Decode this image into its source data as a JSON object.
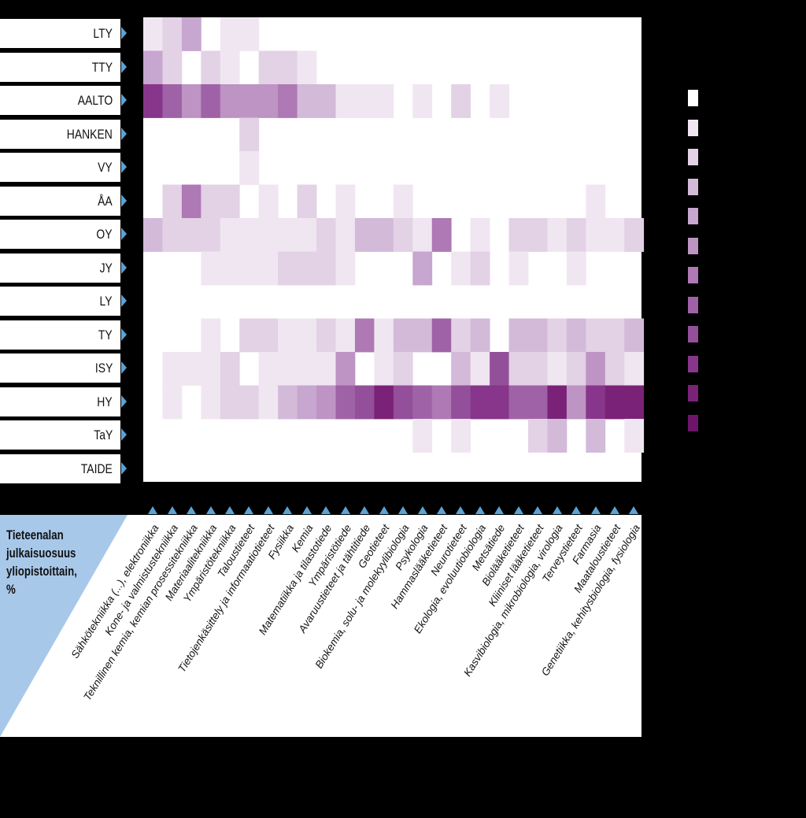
{
  "chart_data": {
    "type": "heatmap",
    "title": "Tieteenalan julkaisuosuus yliopistoittain, %",
    "rows": [
      "LTY",
      "TTY",
      "AALTO",
      "HANKEN",
      "VY",
      "ÅA",
      "OY",
      "JY",
      "LY",
      "TY",
      "ISY",
      "HY",
      "TaY",
      "TAIDE"
    ],
    "columns": [
      "Sähkötekniikka (...), elektroniikka",
      "Kone- ja valmistustekniikka",
      "Teknillinen kemia, kemian prosessitekniikka",
      "Materiaalitekniikka",
      "Ympäristötekniikka",
      "Taloustieteet",
      "Tietojenkäsittely ja informaatiotieteet",
      "Fysiikka",
      "Kemia",
      "Matematiikka ja tilastotiede",
      "Ympäristötiede",
      "Avaruustieteet ja tähtitiede",
      "Geotieteet",
      "Biokemia, solu- ja molekyylibiologia",
      "Psykologia",
      "Hammaslääketieteet",
      "Neurotieteet",
      "Ekologia, evoluutiobiologia",
      "Metsätiede",
      "Biolääketieteet",
      "Kliiniset lääketieteet",
      "Kasvibiologia, mikrobiologia, virologia",
      "Terveystieteet",
      "Farmasia",
      "Maataloustieteet",
      "Genetiikka, kehitysbiologia, fysiologia"
    ],
    "value_scale": "intensity level 0–11 (0 = white, 11 = darkest purple)",
    "values": [
      [
        1,
        2,
        4,
        -1,
        1,
        1,
        0,
        0,
        0,
        0,
        0,
        0,
        0,
        0,
        0,
        0,
        0,
        0,
        0,
        0,
        0,
        0,
        0,
        0,
        0,
        0
      ],
      [
        4,
        2,
        -1,
        2,
        1,
        -1,
        2,
        2,
        1,
        0,
        0,
        0,
        0,
        0,
        0,
        0,
        0,
        0,
        0,
        0,
        0,
        0,
        0,
        0,
        0,
        0
      ],
      [
        9,
        7,
        5,
        7,
        5,
        5,
        5,
        6,
        3,
        3,
        1,
        1,
        1,
        0,
        1,
        0,
        2,
        0,
        1,
        0,
        0,
        0,
        0,
        0,
        0,
        0
      ],
      [
        0,
        0,
        0,
        0,
        0,
        2,
        0,
        0,
        0,
        0,
        0,
        0,
        0,
        0,
        0,
        0,
        0,
        0,
        0,
        0,
        0,
        0,
        0,
        0,
        0,
        0
      ],
      [
        0,
        0,
        0,
        0,
        0,
        1,
        0,
        0,
        0,
        0,
        0,
        0,
        0,
        0,
        0,
        0,
        0,
        0,
        0,
        0,
        0,
        0,
        0,
        0,
        0,
        0
      ],
      [
        0,
        2,
        6,
        2,
        2,
        -1,
        1,
        0,
        2,
        0,
        1,
        0,
        0,
        1,
        0,
        0,
        0,
        0,
        0,
        0,
        0,
        0,
        0,
        1,
        0,
        0
      ],
      [
        3,
        2,
        2,
        2,
        1,
        1,
        1,
        1,
        1,
        2,
        1,
        3,
        3,
        2,
        1,
        6,
        0,
        1,
        -1,
        2,
        2,
        1,
        2,
        1,
        1,
        2
      ],
      [
        0,
        0,
        0,
        1,
        1,
        1,
        1,
        2,
        2,
        2,
        1,
        0,
        0,
        0,
        4,
        0,
        1,
        2,
        -1,
        1,
        0,
        0,
        1,
        0,
        0,
        0
      ],
      [
        0,
        0,
        0,
        0,
        0,
        0,
        0,
        0,
        0,
        0,
        0,
        0,
        0,
        0,
        0,
        0,
        0,
        0,
        0,
        0,
        0,
        0,
        0,
        0,
        0,
        0
      ],
      [
        0,
        0,
        0,
        1,
        0,
        2,
        2,
        1,
        1,
        2,
        1,
        6,
        1,
        3,
        3,
        7,
        2,
        3,
        0,
        3,
        3,
        2,
        3,
        2,
        2,
        3
      ],
      [
        0,
        1,
        1,
        1,
        2,
        -1,
        1,
        1,
        1,
        1,
        5,
        -1,
        1,
        2,
        -1,
        -1,
        3,
        1,
        8,
        2,
        2,
        1,
        2,
        5,
        2,
        1
      ],
      [
        0,
        1,
        -1,
        1,
        2,
        2,
        1,
        3,
        4,
        5,
        7,
        8,
        10,
        8,
        7,
        6,
        8,
        9,
        9,
        7,
        7,
        10,
        5,
        9,
        10,
        10
      ],
      [
        0,
        0,
        0,
        0,
        0,
        0,
        0,
        0,
        0,
        0,
        0,
        0,
        0,
        0,
        1,
        0,
        1,
        0,
        0,
        0,
        2,
        3,
        0,
        3,
        0,
        1
      ],
      [
        0,
        0,
        0,
        0,
        0,
        0,
        0,
        0,
        0,
        0,
        0,
        0,
        0,
        0,
        0,
        0,
        0,
        0,
        0,
        0,
        0,
        0,
        0,
        0,
        0,
        0
      ]
    ],
    "legend_levels": 11,
    "colors": [
      "#ffffff",
      "#f0e6f1",
      "#e3d1e6",
      "#d3bad9",
      "#c7a6cf",
      "#bd94c4",
      "#ae79b4",
      "#a062a6",
      "#944f9a",
      "#87368b",
      "#7a2277",
      "#6e156b"
    ],
    "empty_color": "#ffffff",
    "row_tab_color": "#ffffff",
    "arrow_color": "#5aa3d6",
    "panel_accent_color": "#a8c8ea",
    "background": "#000000"
  }
}
